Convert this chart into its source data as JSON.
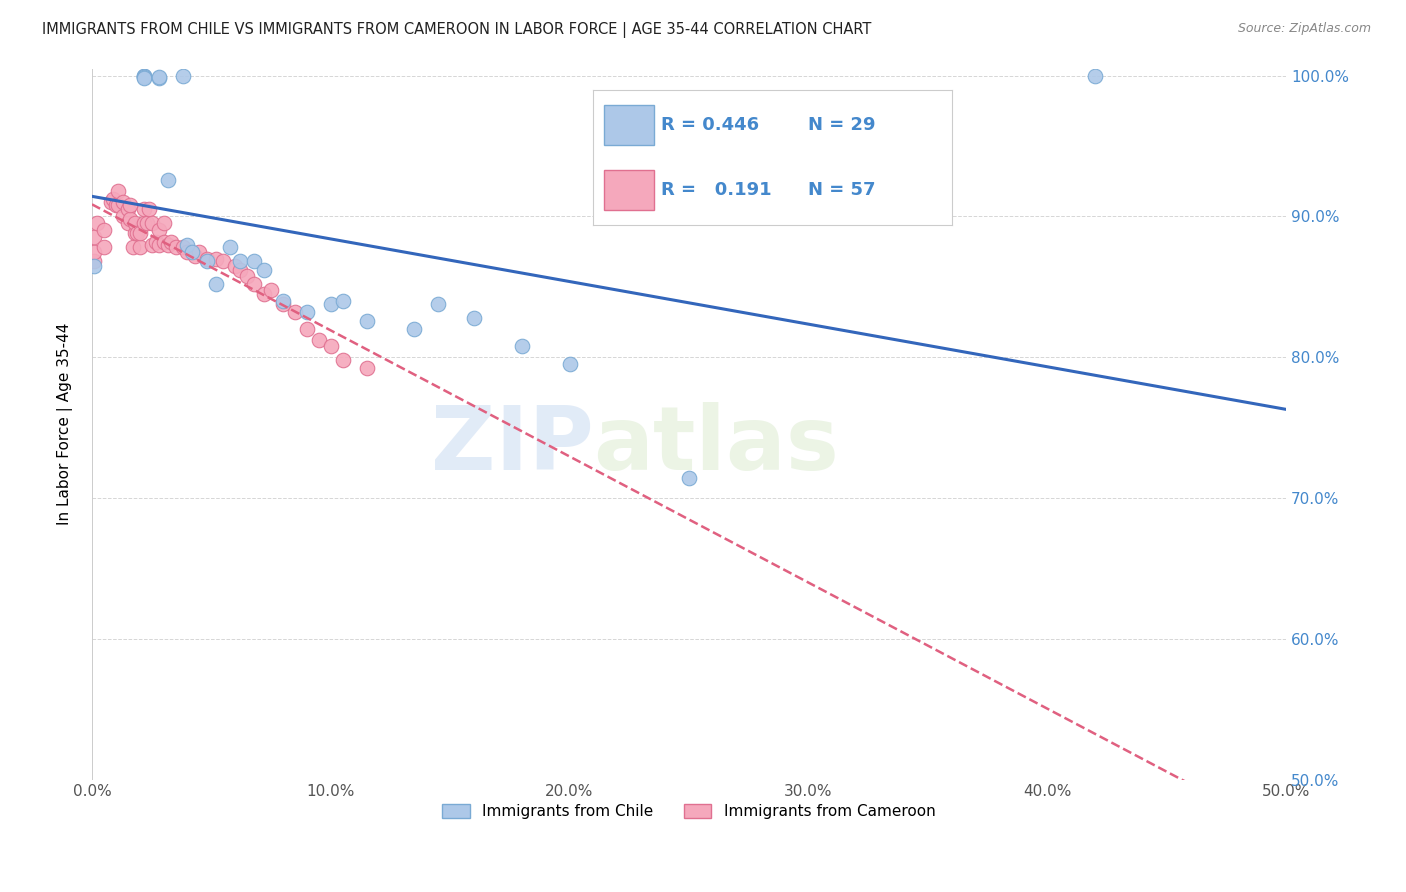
{
  "title": "IMMIGRANTS FROM CHILE VS IMMIGRANTS FROM CAMEROON IN LABOR FORCE | AGE 35-44 CORRELATION CHART",
  "source": "Source: ZipAtlas.com",
  "ylabel": "In Labor Force | Age 35-44",
  "xlim": [
    0.0,
    0.5
  ],
  "ylim": [
    0.5,
    1.005
  ],
  "xticks": [
    0.0,
    0.1,
    0.2,
    0.3,
    0.4,
    0.5
  ],
  "yticks": [
    0.5,
    0.6,
    0.7,
    0.8,
    0.9,
    1.0
  ],
  "chile_color": "#adc8e8",
  "cameroon_color": "#f5a8bc",
  "chile_edge": "#7aaad4",
  "cameroon_edge": "#e07090",
  "trend_chile_color": "#3366bb",
  "trend_cameroon_color": "#e06080",
  "R_chile": 0.446,
  "N_chile": 29,
  "R_cameroon": 0.191,
  "N_cameroon": 57,
  "watermark_zip": "ZIP",
  "watermark_atlas": "atlas",
  "grid_color": "#cccccc",
  "background_color": "#ffffff",
  "right_axis_color": "#4488cc",
  "chile_x": [
    0.001,
    0.022,
    0.022,
    0.022,
    0.022,
    0.028,
    0.028,
    0.032,
    0.038,
    0.04,
    0.042,
    0.048,
    0.052,
    0.058,
    0.062,
    0.068,
    0.072,
    0.08,
    0.09,
    0.1,
    0.105,
    0.115,
    0.135,
    0.145,
    0.16,
    0.18,
    0.2,
    0.25,
    0.42
  ],
  "chile_y": [
    0.865,
    1.0,
    1.0,
    0.999,
    0.998,
    0.998,
    0.999,
    0.926,
    1.0,
    0.88,
    0.875,
    0.868,
    0.852,
    0.878,
    0.868,
    0.868,
    0.862,
    0.84,
    0.832,
    0.838,
    0.84,
    0.826,
    0.82,
    0.838,
    0.828,
    0.808,
    0.795,
    0.714,
    1.0
  ],
  "cameroon_x": [
    0.001,
    0.001,
    0.001,
    0.002,
    0.005,
    0.005,
    0.008,
    0.009,
    0.01,
    0.011,
    0.011,
    0.013,
    0.013,
    0.015,
    0.015,
    0.016,
    0.016,
    0.017,
    0.018,
    0.018,
    0.019,
    0.02,
    0.02,
    0.022,
    0.022,
    0.023,
    0.024,
    0.025,
    0.025,
    0.027,
    0.028,
    0.028,
    0.03,
    0.03,
    0.032,
    0.033,
    0.035,
    0.038,
    0.04,
    0.043,
    0.045,
    0.048,
    0.052,
    0.055,
    0.06,
    0.062,
    0.065,
    0.068,
    0.072,
    0.075,
    0.08,
    0.085,
    0.09,
    0.095,
    0.1,
    0.105,
    0.115
  ],
  "cameroon_y": [
    0.868,
    0.875,
    0.885,
    0.895,
    0.878,
    0.89,
    0.91,
    0.912,
    0.908,
    0.908,
    0.918,
    0.9,
    0.91,
    0.895,
    0.905,
    0.898,
    0.908,
    0.878,
    0.888,
    0.895,
    0.888,
    0.878,
    0.888,
    0.895,
    0.905,
    0.895,
    0.905,
    0.88,
    0.895,
    0.882,
    0.88,
    0.89,
    0.882,
    0.895,
    0.88,
    0.882,
    0.878,
    0.878,
    0.875,
    0.872,
    0.875,
    0.87,
    0.87,
    0.868,
    0.865,
    0.862,
    0.858,
    0.852,
    0.845,
    0.848,
    0.838,
    0.832,
    0.82,
    0.812,
    0.808,
    0.798,
    0.792
  ]
}
